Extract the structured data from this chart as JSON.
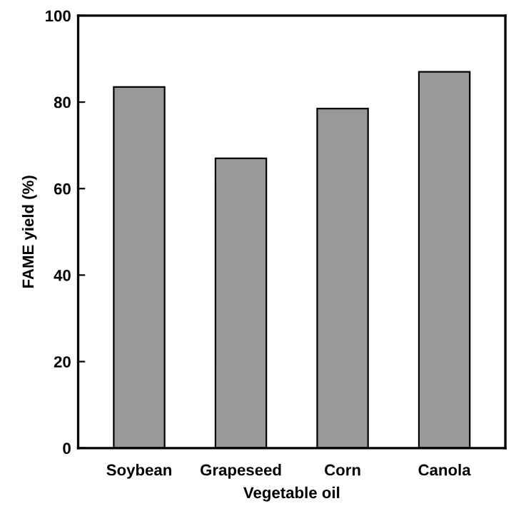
{
  "chart_data": {
    "type": "bar",
    "xlabel": "Vegetable oil",
    "ylabel": "FAME yield (%)",
    "categories": [
      "Soybean",
      "Grapeseed",
      "Corn",
      "Canola"
    ],
    "values": [
      83.5,
      67,
      78.5,
      87
    ],
    "color": "#999999",
    "ylim": [
      0,
      100
    ],
    "yticks": [
      0,
      20,
      40,
      60,
      80,
      100
    ],
    "grid": false,
    "legend": false
  }
}
